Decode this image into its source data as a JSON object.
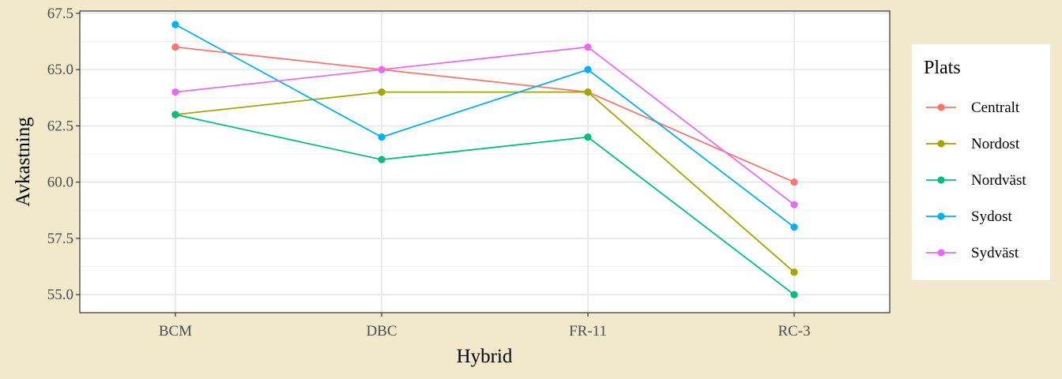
{
  "chart_data": {
    "type": "line",
    "xlabel": "Hybrid",
    "ylabel": "Avkastning",
    "categories": [
      "BCM",
      "DBC",
      "FR-11",
      "RC-3"
    ],
    "ylim": [
      54.2,
      67.6
    ],
    "yticks": [
      55.0,
      57.5,
      60.0,
      62.5,
      65.0,
      67.5
    ],
    "ytick_labels": [
      "55.0",
      "57.5",
      "60.0",
      "62.5",
      "65.0",
      "67.5"
    ],
    "grid": true,
    "legend_title": "Plats",
    "legend_position": "right",
    "series": [
      {
        "name": "Centralt",
        "color": "#F8766D",
        "values": [
          66,
          65,
          64,
          60
        ]
      },
      {
        "name": "Nordost",
        "color": "#A3A500",
        "values": [
          63,
          64,
          64,
          56
        ]
      },
      {
        "name": "Nordväst",
        "color": "#00BF7D",
        "values": [
          63,
          61,
          62,
          55
        ]
      },
      {
        "name": "Sydost",
        "color": "#00B0F6",
        "values": [
          67,
          62,
          65,
          58
        ]
      },
      {
        "name": "Sydväst",
        "color": "#E76BF3",
        "values": [
          64,
          65,
          66,
          59
        ]
      }
    ]
  }
}
